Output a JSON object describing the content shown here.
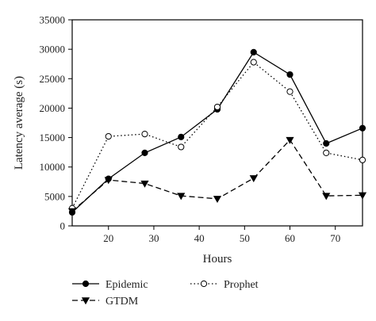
{
  "chart_data": {
    "type": "line",
    "title": "",
    "xlabel": "Hours",
    "ylabel": "Latency average (s)",
    "xlim": [
      12,
      76
    ],
    "ylim": [
      0,
      35000
    ],
    "x_ticks": [
      "20",
      "30",
      "40",
      "50",
      "60",
      "70"
    ],
    "y_ticks": [
      "0",
      "5000",
      "10000",
      "15000",
      "20000",
      "25000",
      "30000",
      "35000"
    ],
    "grid": false,
    "legend_position": "bottom",
    "series": [
      {
        "name": "Epidemic",
        "style": "solid",
        "marker": "filled-circle",
        "color": "#000000",
        "x": [
          12,
          20,
          28,
          36,
          44,
          52,
          60,
          68,
          76
        ],
        "y": [
          2300,
          8000,
          12400,
          15100,
          19800,
          29500,
          25700,
          14000,
          16600
        ]
      },
      {
        "name": "Prophet",
        "style": "dotted",
        "marker": "open-circle",
        "color": "#000000",
        "x": [
          12,
          20,
          28,
          36,
          44,
          52,
          60,
          68,
          76
        ],
        "y": [
          3000,
          15200,
          15600,
          13400,
          20200,
          27800,
          22800,
          12400,
          11200
        ]
      },
      {
        "name": "GTDM",
        "style": "dashed",
        "marker": "filled-down-triangle",
        "color": "#000000",
        "x": [
          12,
          20,
          28,
          36,
          44,
          52,
          60,
          68,
          76
        ],
        "y": [
          2500,
          7800,
          7200,
          5100,
          4600,
          8100,
          14600,
          5100,
          5200
        ]
      }
    ]
  }
}
